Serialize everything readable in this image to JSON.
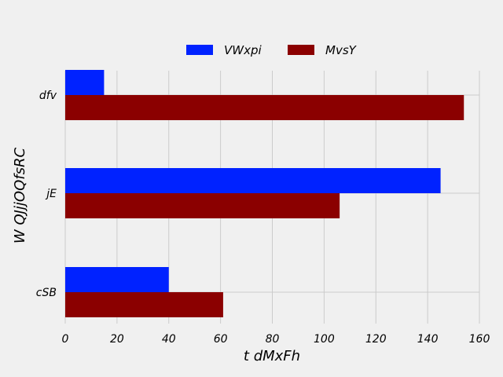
{
  "chart_data": {
    "type": "bar",
    "orientation": "horizontal",
    "categories": [
      "dfv",
      "jE",
      "cSB"
    ],
    "series": [
      {
        "name": "VWxpi",
        "values": [
          15,
          145,
          40
        ],
        "color": "#0022ff"
      },
      {
        "name": "MvsY",
        "values": [
          154,
          106,
          61
        ],
        "color": "#8b0000"
      }
    ],
    "xlabel": "t dMxFh",
    "ylabel": "W QJjjOQfsRC",
    "xlim": [
      0,
      160
    ],
    "xticks": [
      "0",
      "20",
      "40",
      "60",
      "80",
      "100",
      "120",
      "140",
      "160"
    ],
    "grid": true,
    "legend_position": "top-center",
    "background": "#f0f0f0",
    "grid_color": "#cbcbcb"
  }
}
